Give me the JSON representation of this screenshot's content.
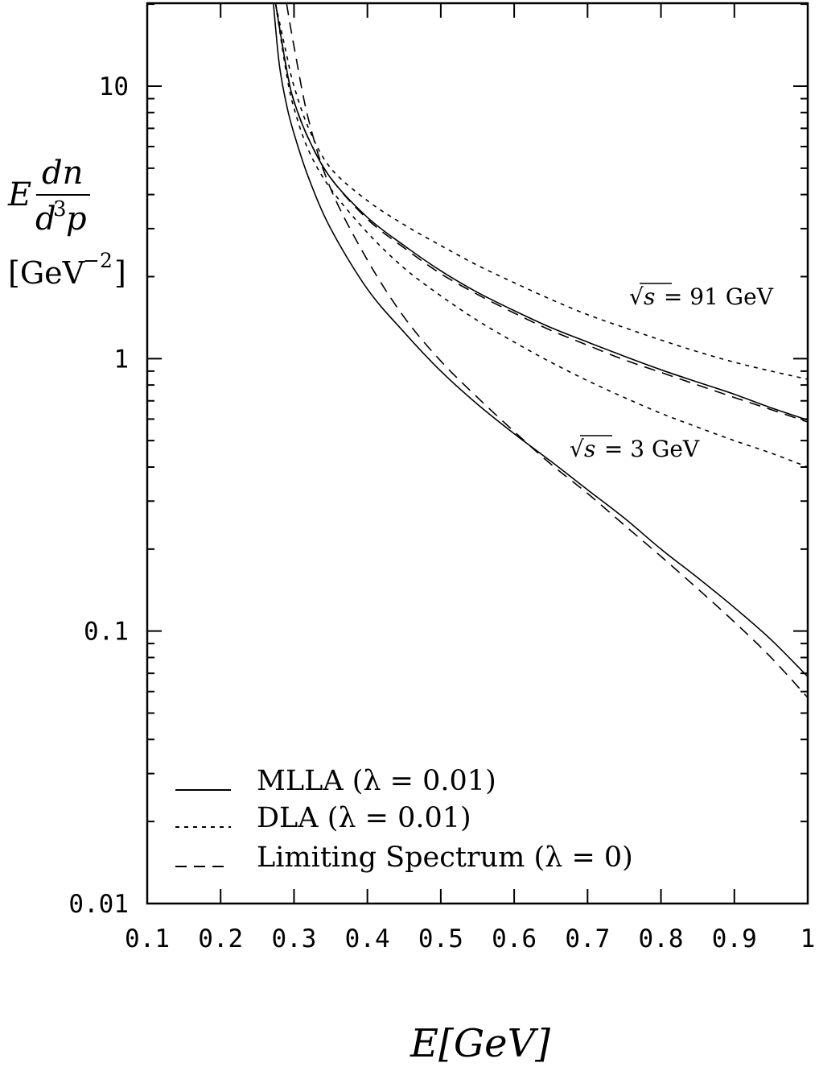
{
  "chart_data": {
    "type": "line",
    "xlabel": "E[GeV]",
    "ylabel": {
      "prefix": "E",
      "numerator": "dn",
      "denominator_base": "d",
      "denominator_exp": "3",
      "denominator_var": "p",
      "unit_open": "[GeV",
      "unit_exp": "−2",
      "unit_close": "]"
    },
    "xlim": [
      0.1,
      1.0
    ],
    "ylim": [
      0.01,
      20
    ],
    "yscale": "log",
    "x_ticks": [
      "0.1",
      "0.2",
      "0.3",
      "0.4",
      "0.5",
      "0.6",
      "0.7",
      "0.8",
      "0.9",
      "1"
    ],
    "y_ticks": [
      {
        "value": 10,
        "label": "10"
      },
      {
        "value": 1,
        "label": "1"
      },
      {
        "value": 0.1,
        "label": "0.1"
      },
      {
        "value": 0.01,
        "label": "0.01"
      }
    ],
    "annotations": [
      {
        "sqrt": "√",
        "var": "s",
        "text": " = 91 GeV",
        "x": 0.96,
        "y": 2.15
      },
      {
        "sqrt": "√",
        "var": "s",
        "text": " = 3 GeV",
        "x": 0.87,
        "y": 0.565
      }
    ],
    "legend": {
      "position": "bottom-left",
      "entries": [
        {
          "style": "solid",
          "label": "MLLA (λ = 0.01)"
        },
        {
          "style": "dotted",
          "label": "DLA (λ = 0.01)"
        },
        {
          "style": "dashed",
          "label": "Limiting Spectrum (λ = 0)"
        }
      ]
    },
    "series": [
      {
        "style": "solid",
        "group": "91 GeV",
        "x": [
          0.275,
          0.29,
          0.3,
          0.32,
          0.35,
          0.4,
          0.45,
          0.5,
          0.55,
          0.6,
          0.65,
          0.7,
          0.75,
          0.8,
          0.85,
          0.9,
          0.95,
          1.0
        ],
        "y": [
          20,
          11.5,
          8.8,
          6.4,
          4.6,
          3.3,
          2.6,
          2.1,
          1.75,
          1.5,
          1.3,
          1.15,
          1.02,
          0.91,
          0.82,
          0.74,
          0.66,
          0.595
        ]
      },
      {
        "style": "dashed",
        "group": "91 GeV",
        "x": [
          0.275,
          0.29,
          0.3,
          0.32,
          0.35,
          0.4,
          0.45,
          0.5,
          0.55,
          0.6,
          0.65,
          0.7,
          0.75,
          0.8,
          0.85,
          0.9,
          0.95,
          1.0
        ],
        "y": [
          20,
          11.5,
          8.8,
          6.4,
          4.6,
          3.25,
          2.55,
          2.05,
          1.72,
          1.47,
          1.27,
          1.12,
          0.99,
          0.89,
          0.8,
          0.72,
          0.65,
          0.585
        ]
      },
      {
        "style": "dotted",
        "group": "91 GeV",
        "x": [
          0.275,
          0.29,
          0.3,
          0.32,
          0.35,
          0.4,
          0.45,
          0.5,
          0.55,
          0.6,
          0.65,
          0.7,
          0.75,
          0.8,
          0.85,
          0.9,
          0.95,
          1.0
        ],
        "y": [
          20,
          13,
          10,
          7.0,
          5.0,
          3.8,
          3.1,
          2.6,
          2.2,
          1.9,
          1.65,
          1.45,
          1.3,
          1.17,
          1.06,
          0.97,
          0.9,
          0.84
        ]
      },
      {
        "style": "dotted",
        "group": "91 GeV",
        "x": [
          0.275,
          0.29,
          0.3,
          0.32,
          0.35,
          0.4,
          0.45,
          0.5,
          0.55,
          0.6,
          0.65,
          0.7,
          0.75,
          0.8,
          0.85,
          0.9,
          0.95,
          1.0
        ],
        "y": [
          20,
          11,
          8.3,
          5.8,
          4.2,
          2.9,
          2.15,
          1.7,
          1.38,
          1.15,
          0.97,
          0.83,
          0.72,
          0.63,
          0.56,
          0.5,
          0.45,
          0.4
        ]
      },
      {
        "style": "solid",
        "group": "3 GeV",
        "x": [
          0.272,
          0.28,
          0.29,
          0.3,
          0.32,
          0.35,
          0.4,
          0.45,
          0.5,
          0.55,
          0.6,
          0.65,
          0.7,
          0.75,
          0.8,
          0.85,
          0.9,
          0.95,
          1.0
        ],
        "y": [
          20,
          12,
          8.5,
          6.7,
          4.6,
          3.0,
          1.8,
          1.25,
          0.9,
          0.68,
          0.53,
          0.42,
          0.33,
          0.26,
          0.2,
          0.157,
          0.122,
          0.093,
          0.068
        ]
      },
      {
        "style": "dashed",
        "group": "3 GeV",
        "x": [
          0.29,
          0.3,
          0.32,
          0.35,
          0.4,
          0.45,
          0.5,
          0.55,
          0.6,
          0.65,
          0.7,
          0.75,
          0.8,
          0.85,
          0.9,
          0.95,
          1.0
        ],
        "y": [
          20,
          14,
          7.5,
          4.2,
          2.3,
          1.42,
          0.98,
          0.72,
          0.54,
          0.41,
          0.32,
          0.245,
          0.188,
          0.143,
          0.108,
          0.08,
          0.057
        ]
      }
    ]
  }
}
